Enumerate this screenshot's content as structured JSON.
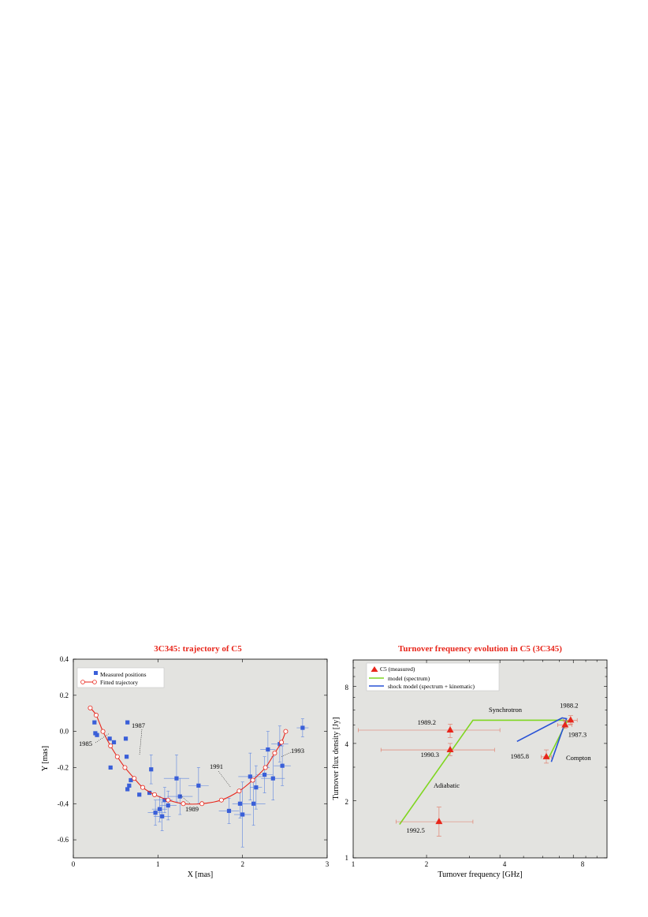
{
  "chart_data": [
    {
      "type": "scatter",
      "title": "3C345: trajectory of C5",
      "xlabel": "X [mas]",
      "ylabel": "Y [mas]",
      "xlim": [
        0,
        3
      ],
      "ylim": [
        -0.7,
        0.4
      ],
      "xticks": [
        "0",
        "1",
        "2",
        "3"
      ],
      "yticks": [
        "0.4",
        "0.2",
        "0.0",
        "-0.2",
        "-0.4",
        "-0.6"
      ],
      "legend_position": "top-left",
      "grid": false,
      "series": [
        {
          "name": "Measured positions",
          "color": "#3a5fd8",
          "marker": "square",
          "x": [
            0.25,
            0.26,
            0.28,
            0.43,
            0.44,
            0.48,
            0.62,
            0.63,
            0.64,
            0.64,
            0.66,
            0.68,
            0.78,
            0.9,
            0.92,
            0.97,
            1.02,
            1.05,
            1.08,
            1.12,
            1.22,
            1.26,
            1.48,
            1.84,
            1.97,
            2.0,
            2.09,
            2.13,
            2.16,
            2.26,
            2.3,
            2.36,
            2.44,
            2.47,
            2.71
          ],
          "y": [
            0.05,
            -0.01,
            -0.02,
            -0.04,
            -0.2,
            -0.06,
            -0.04,
            -0.14,
            0.05,
            -0.32,
            -0.3,
            -0.27,
            -0.35,
            -0.34,
            -0.21,
            -0.45,
            -0.43,
            -0.47,
            -0.38,
            -0.41,
            -0.26,
            -0.36,
            -0.3,
            -0.44,
            -0.4,
            -0.46,
            -0.25,
            -0.4,
            -0.31,
            -0.24,
            -0.1,
            -0.26,
            -0.07,
            -0.19,
            0.02
          ],
          "xerr": [
            0,
            0,
            0,
            0,
            0,
            0,
            0,
            0,
            0,
            0,
            0,
            0,
            0,
            0,
            0,
            0.09,
            0.09,
            0.1,
            0.09,
            0.1,
            0.15,
            0.15,
            0.12,
            0.12,
            0.09,
            0.1,
            0.14,
            0.14,
            0.07,
            0.1,
            0.09,
            0.14,
            0.1,
            0.1,
            0.07
          ],
          "yerr": [
            0,
            0,
            0,
            0,
            0,
            0,
            0,
            0,
            0,
            0,
            0,
            0,
            0,
            0,
            0.08,
            0.07,
            0.07,
            0.08,
            0.07,
            0.08,
            0.13,
            0.1,
            0.1,
            0.07,
            0.08,
            0.18,
            0.13,
            0.12,
            0.12,
            0.1,
            0.1,
            0.12,
            0.1,
            0.11,
            0.05
          ]
        },
        {
          "name": "Fitted trajectory",
          "color": "#e8261b",
          "marker": "open-circle",
          "x": [
            0.2,
            0.27,
            0.35,
            0.44,
            0.52,
            0.61,
            0.72,
            0.82,
            0.96,
            1.12,
            1.3,
            1.52,
            1.75,
            1.96,
            2.12,
            2.27,
            2.38,
            2.46,
            2.51
          ],
          "y": [
            0.13,
            0.09,
            0.0,
            -0.08,
            -0.14,
            -0.2,
            -0.26,
            -0.31,
            -0.35,
            -0.38,
            -0.4,
            -0.4,
            -0.38,
            -0.33,
            -0.27,
            -0.2,
            -0.12,
            -0.06,
            0.0
          ]
        }
      ],
      "annotations": [
        {
          "text": "1985",
          "x": 0.45,
          "y": -0.1
        },
        {
          "text": "1987",
          "x": 0.78,
          "y": -0.28
        },
        {
          "text": "1989",
          "x": 1.25,
          "y": -0.4
        },
        {
          "text": "1991",
          "x": 1.87,
          "y": -0.4
        },
        {
          "text": "1993",
          "x": 2.37,
          "y": -0.21
        }
      ]
    },
    {
      "type": "scatter",
      "title": "Turnover frequency evolution in C5 (3C345)",
      "xlabel": "Turnover frequency [GHz]",
      "ylabel": "Turnover flux density [Jy]",
      "xscale": "log",
      "yscale": "log",
      "xlim": [
        1,
        11
      ],
      "ylim": [
        1,
        11
      ],
      "xticks": [
        "1",
        "2",
        "4",
        "8"
      ],
      "yticks": [
        "1",
        "2",
        "4",
        "8"
      ],
      "legend_position": "top-left",
      "grid": false,
      "series": [
        {
          "name": "C5 (measured)",
          "color": "#e8261b",
          "marker": "triangle",
          "points": [
            {
              "label": "1985.8",
              "x": 6.2,
              "y": 3.4,
              "x_err": [
                5.9,
                6.5
              ],
              "y_err": [
                3.15,
                3.7
              ]
            },
            {
              "label": "1987.3",
              "x": 7.4,
              "y": 5.0,
              "x_err": [
                6.9,
                7.9
              ],
              "y_err": [
                4.8,
                5.25
              ]
            },
            {
              "label": "1988.2",
              "x": 7.8,
              "y": 5.3,
              "x_err": [
                7.3,
                8.3
              ],
              "y_err": [
                5.05,
                5.6
              ]
            },
            {
              "label": "1989.2",
              "x": 2.5,
              "y": 4.7,
              "x_err": [
                1.05,
                4.0
              ],
              "y_err": [
                4.3,
                5.05
              ]
            },
            {
              "label": "1990.3",
              "x": 2.5,
              "y": 3.7,
              "x_err": [
                1.3,
                3.8
              ],
              "y_err": [
                3.45,
                4.0
              ]
            },
            {
              "label": "1992.5",
              "x": 2.25,
              "y": 1.55,
              "x_err": [
                1.5,
                3.1
              ],
              "y_err": [
                1.3,
                1.85
              ]
            }
          ]
        },
        {
          "name": "model (spectrum)",
          "color": "#7fd620",
          "x": [
            1.55,
            3.1,
            7.3,
            7.55,
            6.3
          ],
          "y": [
            1.5,
            5.3,
            5.3,
            5.25,
            3.3
          ]
        },
        {
          "name": "shock model (spectrum + kinematic)",
          "color": "#2852d6",
          "x": [
            4.7,
            7.2,
            7.5,
            6.5
          ],
          "y": [
            4.1,
            5.45,
            5.4,
            3.2
          ]
        }
      ],
      "annotations": [
        {
          "text": "Synchrotron"
        },
        {
          "text": "Adiabatic"
        },
        {
          "text": "Compton"
        }
      ]
    }
  ]
}
